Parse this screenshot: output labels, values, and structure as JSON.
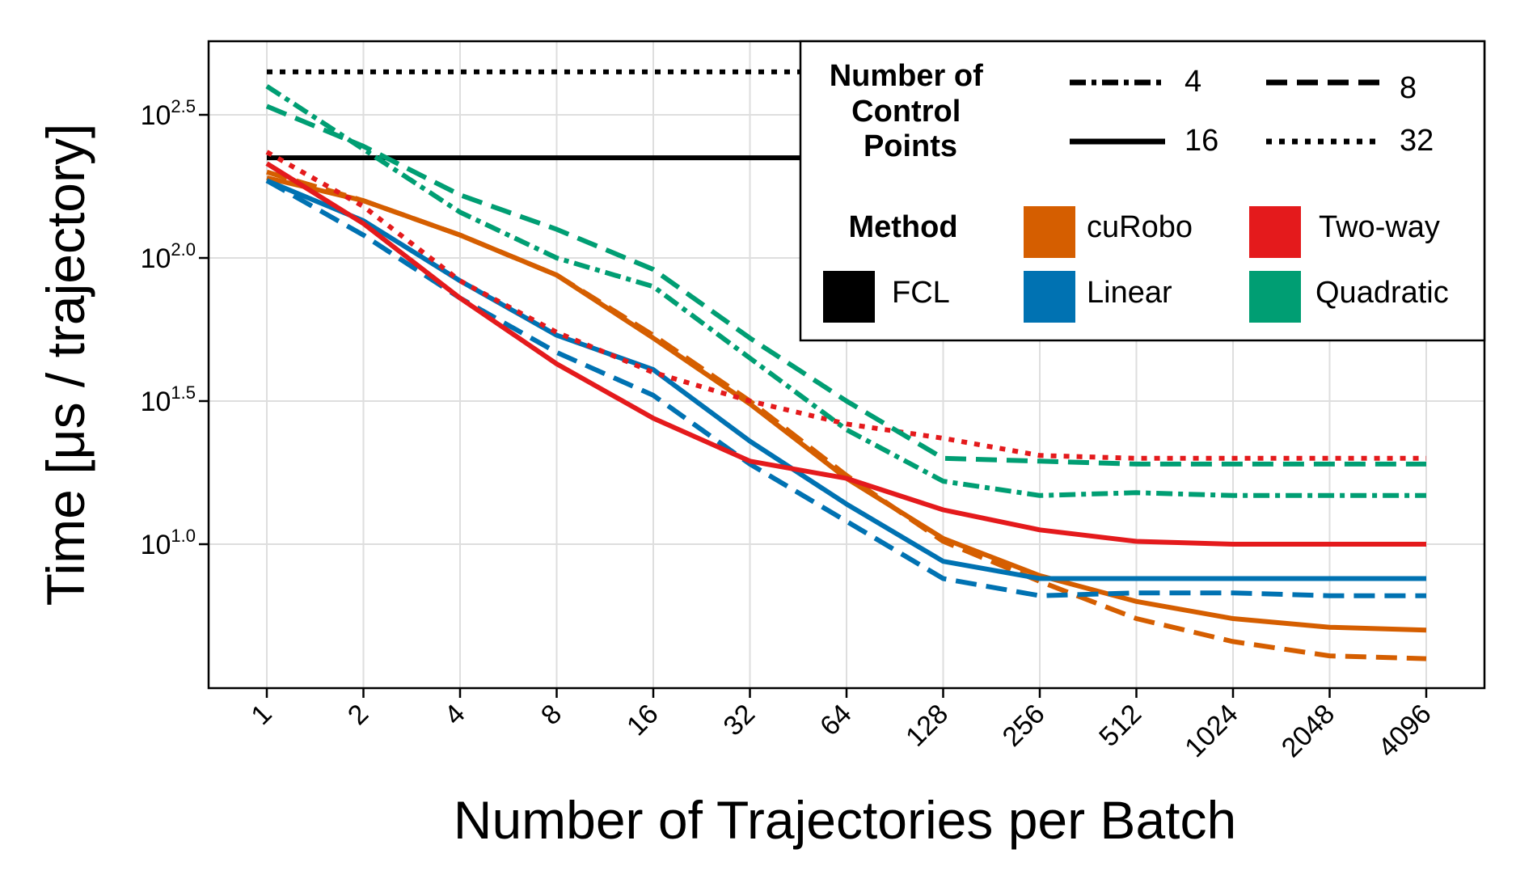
{
  "chart_data": {
    "type": "line",
    "title": "",
    "xlabel": "Number of Trajectories per Batch",
    "ylabel": "Time [μs / trajectory]",
    "x_scale": "log2",
    "y_scale": "log10",
    "x": [
      1,
      2,
      4,
      8,
      16,
      32,
      64,
      128,
      256,
      512,
      1024,
      2048,
      4096
    ],
    "x_tick_labels": [
      "1",
      "2",
      "4",
      "8",
      "16",
      "32",
      "64",
      "128",
      "256",
      "512",
      "1024",
      "2048",
      "4096"
    ],
    "y_ticks": [
      {
        "base": "10",
        "exp": "1.0",
        "log_value": 1.0
      },
      {
        "base": "10",
        "exp": "1.5",
        "log_value": 1.5
      },
      {
        "base": "10",
        "exp": "2.0",
        "log_value": 2.0
      },
      {
        "base": "10",
        "exp": "2.5",
        "log_value": 2.5
      }
    ],
    "ylim_log10": [
      0.5,
      2.75
    ],
    "grid": true,
    "legend_position": "top-right",
    "legend": {
      "control_points_title": "Number of Control Points",
      "control_points_title_lines": [
        "Number of",
        "Control",
        "Points"
      ],
      "control_points": [
        {
          "label": "4",
          "dash": "dashdot"
        },
        {
          "label": "8",
          "dash": "dashed"
        },
        {
          "label": "16",
          "dash": "solid"
        },
        {
          "label": "32",
          "dash": "dotted"
        }
      ],
      "method_title": "Method",
      "methods": [
        {
          "label": "FCL",
          "color": "#000000"
        },
        {
          "label": "cuRobo",
          "color": "#d55e00"
        },
        {
          "label": "Linear",
          "color": "#0072b2"
        },
        {
          "label": "Two-way",
          "color": "#e41a1c"
        },
        {
          "label": "Quadratic",
          "color": "#009e73"
        }
      ]
    },
    "series": [
      {
        "name": "FCL",
        "method": "FCL",
        "control_points": "16",
        "color": "#000000",
        "dash": "solid",
        "log10_values": [
          2.35,
          2.35,
          2.35,
          2.35,
          2.35,
          2.35,
          2.35,
          2.35,
          2.35,
          2.35,
          2.35,
          2.35,
          2.35
        ]
      },
      {
        "name": "FCL",
        "method": "FCL",
        "control_points": "32",
        "color": "#000000",
        "dash": "dotted",
        "log10_values": [
          2.65,
          2.65,
          2.65,
          2.65,
          2.65,
          2.65,
          2.65,
          2.65,
          2.65,
          2.65,
          2.65,
          2.65,
          2.65
        ]
      },
      {
        "name": "cuRobo",
        "method": "cuRobo",
        "control_points": "16",
        "color": "#d55e00",
        "dash": "solid",
        "log10_values": [
          2.28,
          2.2,
          2.08,
          1.94,
          1.72,
          1.49,
          1.23,
          1.02,
          0.89,
          0.8,
          0.74,
          0.71,
          0.7
        ]
      },
      {
        "name": "cuRobo",
        "method": "cuRobo",
        "control_points": "8",
        "color": "#d55e00",
        "dash": "dashed",
        "log10_values": [
          2.3,
          2.2,
          2.08,
          1.94,
          1.73,
          1.5,
          1.24,
          1.01,
          0.87,
          0.74,
          0.66,
          0.61,
          0.6
        ]
      },
      {
        "name": "Linear",
        "method": "Linear",
        "control_points": "16",
        "color": "#0072b2",
        "dash": "solid",
        "log10_values": [
          2.27,
          2.13,
          1.92,
          1.73,
          1.61,
          1.36,
          1.14,
          0.94,
          0.88,
          0.88,
          0.88,
          0.88,
          0.88
        ]
      },
      {
        "name": "Linear",
        "method": "Linear",
        "control_points": "8",
        "color": "#0072b2",
        "dash": "dashed",
        "log10_values": [
          2.27,
          2.08,
          1.86,
          1.67,
          1.52,
          1.28,
          1.08,
          0.88,
          0.82,
          0.83,
          0.83,
          0.82,
          0.82
        ]
      },
      {
        "name": "Two-way",
        "method": "Two-way",
        "control_points": "16",
        "color": "#e41a1c",
        "dash": "solid",
        "log10_values": [
          2.33,
          2.12,
          1.86,
          1.63,
          1.44,
          1.29,
          1.23,
          1.12,
          1.05,
          1.01,
          1.0,
          1.0,
          1.0
        ]
      },
      {
        "name": "Two-way",
        "method": "Two-way",
        "control_points": "32",
        "color": "#e41a1c",
        "dash": "dotted",
        "log10_values": [
          2.37,
          2.18,
          1.92,
          1.74,
          1.6,
          1.5,
          1.42,
          1.37,
          1.31,
          1.3,
          1.3,
          1.3,
          1.3
        ]
      },
      {
        "name": "Quadratic",
        "method": "Quadratic",
        "control_points": "4",
        "color": "#009e73",
        "dash": "dashdot",
        "log10_values": [
          2.6,
          2.38,
          2.16,
          2.0,
          1.9,
          1.65,
          1.4,
          1.22,
          1.17,
          1.18,
          1.17,
          1.17,
          1.17
        ]
      },
      {
        "name": "Quadratic",
        "method": "Quadratic",
        "control_points": "8",
        "color": "#009e73",
        "dash": "dashed",
        "log10_values": [
          2.53,
          2.39,
          2.22,
          2.1,
          1.96,
          1.72,
          1.5,
          1.3,
          1.29,
          1.28,
          1.28,
          1.28,
          1.28
        ]
      }
    ]
  }
}
